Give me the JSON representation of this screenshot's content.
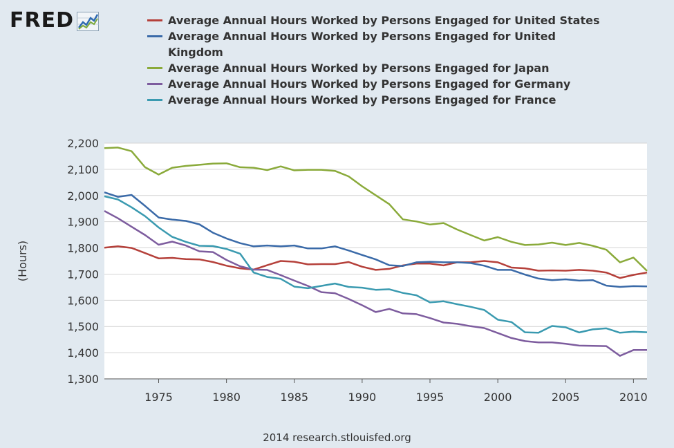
{
  "logo": {
    "text": "FRED"
  },
  "footer": {
    "credit": "2014 research.stlouisfed.org"
  },
  "chart_data": {
    "type": "line",
    "ylabel": "(Hours)",
    "xlim": [
      1971,
      2011
    ],
    "ylim": [
      1300,
      2200
    ],
    "yticks": [
      1300,
      1400,
      1500,
      1600,
      1700,
      1800,
      1900,
      2000,
      2100,
      2200
    ],
    "ytick_labels": [
      "1,300",
      "1,400",
      "1,500",
      "1,600",
      "1,700",
      "1,800",
      "1,900",
      "2,000",
      "2,100",
      "2,200"
    ],
    "xticks": [
      1975,
      1980,
      1985,
      1990,
      1995,
      2000,
      2005,
      2010
    ],
    "xtick_labels": [
      "1975",
      "1980",
      "1985",
      "1990",
      "1995",
      "2000",
      "2005",
      "2010"
    ],
    "grid": "horizontal",
    "legend_position": "top",
    "x": [
      1971,
      1972,
      1973,
      1974,
      1975,
      1976,
      1977,
      1978,
      1979,
      1980,
      1981,
      1982,
      1983,
      1984,
      1985,
      1986,
      1987,
      1988,
      1989,
      1990,
      1991,
      1992,
      1993,
      1994,
      1995,
      1996,
      1997,
      1998,
      1999,
      2000,
      2001,
      2002,
      2003,
      2004,
      2005,
      2006,
      2007,
      2008,
      2009,
      2010,
      2011
    ],
    "series": [
      {
        "name": "Average Annual Hours Worked by Persons Engaged for United States",
        "color": "#b5403a",
        "values": [
          1801,
          1806,
          1800,
          1780,
          1760,
          1762,
          1757,
          1756,
          1746,
          1732,
          1722,
          1717,
          1734,
          1750,
          1747,
          1737,
          1738,
          1738,
          1746,
          1728,
          1716,
          1720,
          1733,
          1740,
          1740,
          1733,
          1745,
          1745,
          1750,
          1745,
          1725,
          1722,
          1713,
          1714,
          1713,
          1716,
          1713,
          1706,
          1685,
          1697,
          1706
        ]
      },
      {
        "name": "Average Annual Hours Worked by Persons Engaged for United Kingdom",
        "color": "#3a6aa8",
        "values": [
          2012,
          1995,
          2002,
          1960,
          1916,
          1908,
          1903,
          1890,
          1858,
          1836,
          1818,
          1806,
          1809,
          1806,
          1809,
          1798,
          1798,
          1806,
          1790,
          1773,
          1756,
          1734,
          1731,
          1745,
          1747,
          1745,
          1745,
          1742,
          1732,
          1716,
          1716,
          1698,
          1683,
          1677,
          1680,
          1675,
          1677,
          1656,
          1651,
          1654,
          1653
        ]
      },
      {
        "name": "Average Annual Hours Worked by Persons Engaged for Japan",
        "color": "#8aaa3a",
        "values": [
          2181,
          2183,
          2169,
          2108,
          2080,
          2106,
          2113,
          2117,
          2122,
          2123,
          2108,
          2106,
          2097,
          2111,
          2096,
          2098,
          2098,
          2094,
          2073,
          2035,
          2001,
          1967,
          1909,
          1901,
          1889,
          1895,
          1870,
          1849,
          1828,
          1841,
          1823,
          1811,
          1813,
          1820,
          1811,
          1819,
          1808,
          1793,
          1745,
          1763,
          1712
        ]
      },
      {
        "name": "Average Annual Hours Worked by Persons Engaged for Germany",
        "color": "#7d5c9e",
        "values": [
          1941,
          1913,
          1881,
          1849,
          1812,
          1824,
          1809,
          1787,
          1784,
          1754,
          1730,
          1717,
          1716,
          1696,
          1675,
          1655,
          1631,
          1627,
          1605,
          1581,
          1555,
          1567,
          1550,
          1547,
          1532,
          1515,
          1510,
          1501,
          1494,
          1475,
          1456,
          1444,
          1439,
          1439,
          1434,
          1427,
          1426,
          1425,
          1388,
          1410,
          1410
        ]
      },
      {
        "name": "Average Annual Hours Worked by Persons Engaged for France",
        "color": "#3a9ab0",
        "values": [
          1997,
          1985,
          1955,
          1921,
          1878,
          1842,
          1823,
          1808,
          1807,
          1796,
          1778,
          1706,
          1689,
          1682,
          1652,
          1646,
          1655,
          1664,
          1651,
          1648,
          1640,
          1642,
          1628,
          1619,
          1592,
          1596,
          1585,
          1575,
          1563,
          1526,
          1517,
          1478,
          1476,
          1502,
          1497,
          1477,
          1489,
          1493,
          1476,
          1480,
          1478
        ]
      }
    ]
  }
}
